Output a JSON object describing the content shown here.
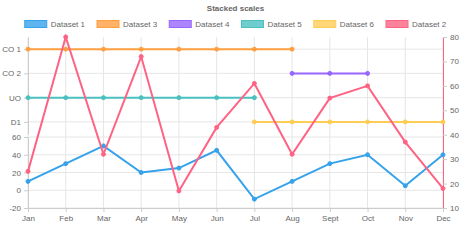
{
  "chart_data": {
    "type": "line",
    "title": "Stacked scales",
    "categories": [
      "Jan",
      "Feb",
      "Mar",
      "Apr",
      "May",
      "Jun",
      "Jul",
      "Aug",
      "Sept",
      "Oct",
      "Nov",
      "Dec"
    ],
    "ylim": [
      -20,
      60
    ],
    "yticks": [
      -20,
      0,
      20,
      40,
      60
    ],
    "y2lim": [
      10,
      80
    ],
    "y2ticks": [
      10,
      20,
      30,
      40,
      50,
      60,
      70,
      80
    ],
    "y_categories": [
      "CO 1",
      "CO 2",
      "UO",
      "D1"
    ],
    "grid": true,
    "legend": "top",
    "series": [
      {
        "name": "Dataset 1",
        "color": "#36a2eb",
        "axis": "y",
        "marker": "circle",
        "values": [
          10,
          30,
          50,
          20,
          25,
          45,
          -10,
          10,
          30,
          40,
          5,
          40
        ]
      },
      {
        "name": "Dataset 3",
        "color": "#ff9f40",
        "axis": "y_cat",
        "marker": "circle",
        "values": [
          "CO 1",
          "CO 1",
          "CO 1",
          "CO 1",
          "CO 1",
          "CO 1",
          "CO 1",
          "CO 1",
          null,
          null,
          null,
          null
        ]
      },
      {
        "name": "Dataset 4",
        "color": "#9966ff",
        "axis": "y_cat",
        "marker": "circle",
        "values": [
          null,
          null,
          null,
          null,
          null,
          null,
          null,
          "CO 2",
          "CO 2",
          "CO 2",
          null,
          null
        ]
      },
      {
        "name": "Dataset 5",
        "color": "#4bc0c0",
        "axis": "y_cat",
        "marker": "circle",
        "values": [
          "UO",
          "UO",
          "UO",
          "UO",
          "UO",
          "UO",
          "UO",
          null,
          null,
          null,
          null,
          null
        ]
      },
      {
        "name": "Dataset 6",
        "color": "#ffcd56",
        "axis": "y_cat",
        "marker": "circle",
        "values": [
          null,
          null,
          null,
          null,
          null,
          null,
          "D1",
          "D1",
          "D1",
          "D1",
          "D1",
          "D1"
        ]
      },
      {
        "name": "Dataset 2",
        "color": "#ff6384",
        "axis": "y2",
        "marker": "circle",
        "values": [
          25,
          80,
          32,
          72,
          17,
          43,
          61,
          32,
          55,
          60,
          37,
          18
        ]
      }
    ]
  }
}
